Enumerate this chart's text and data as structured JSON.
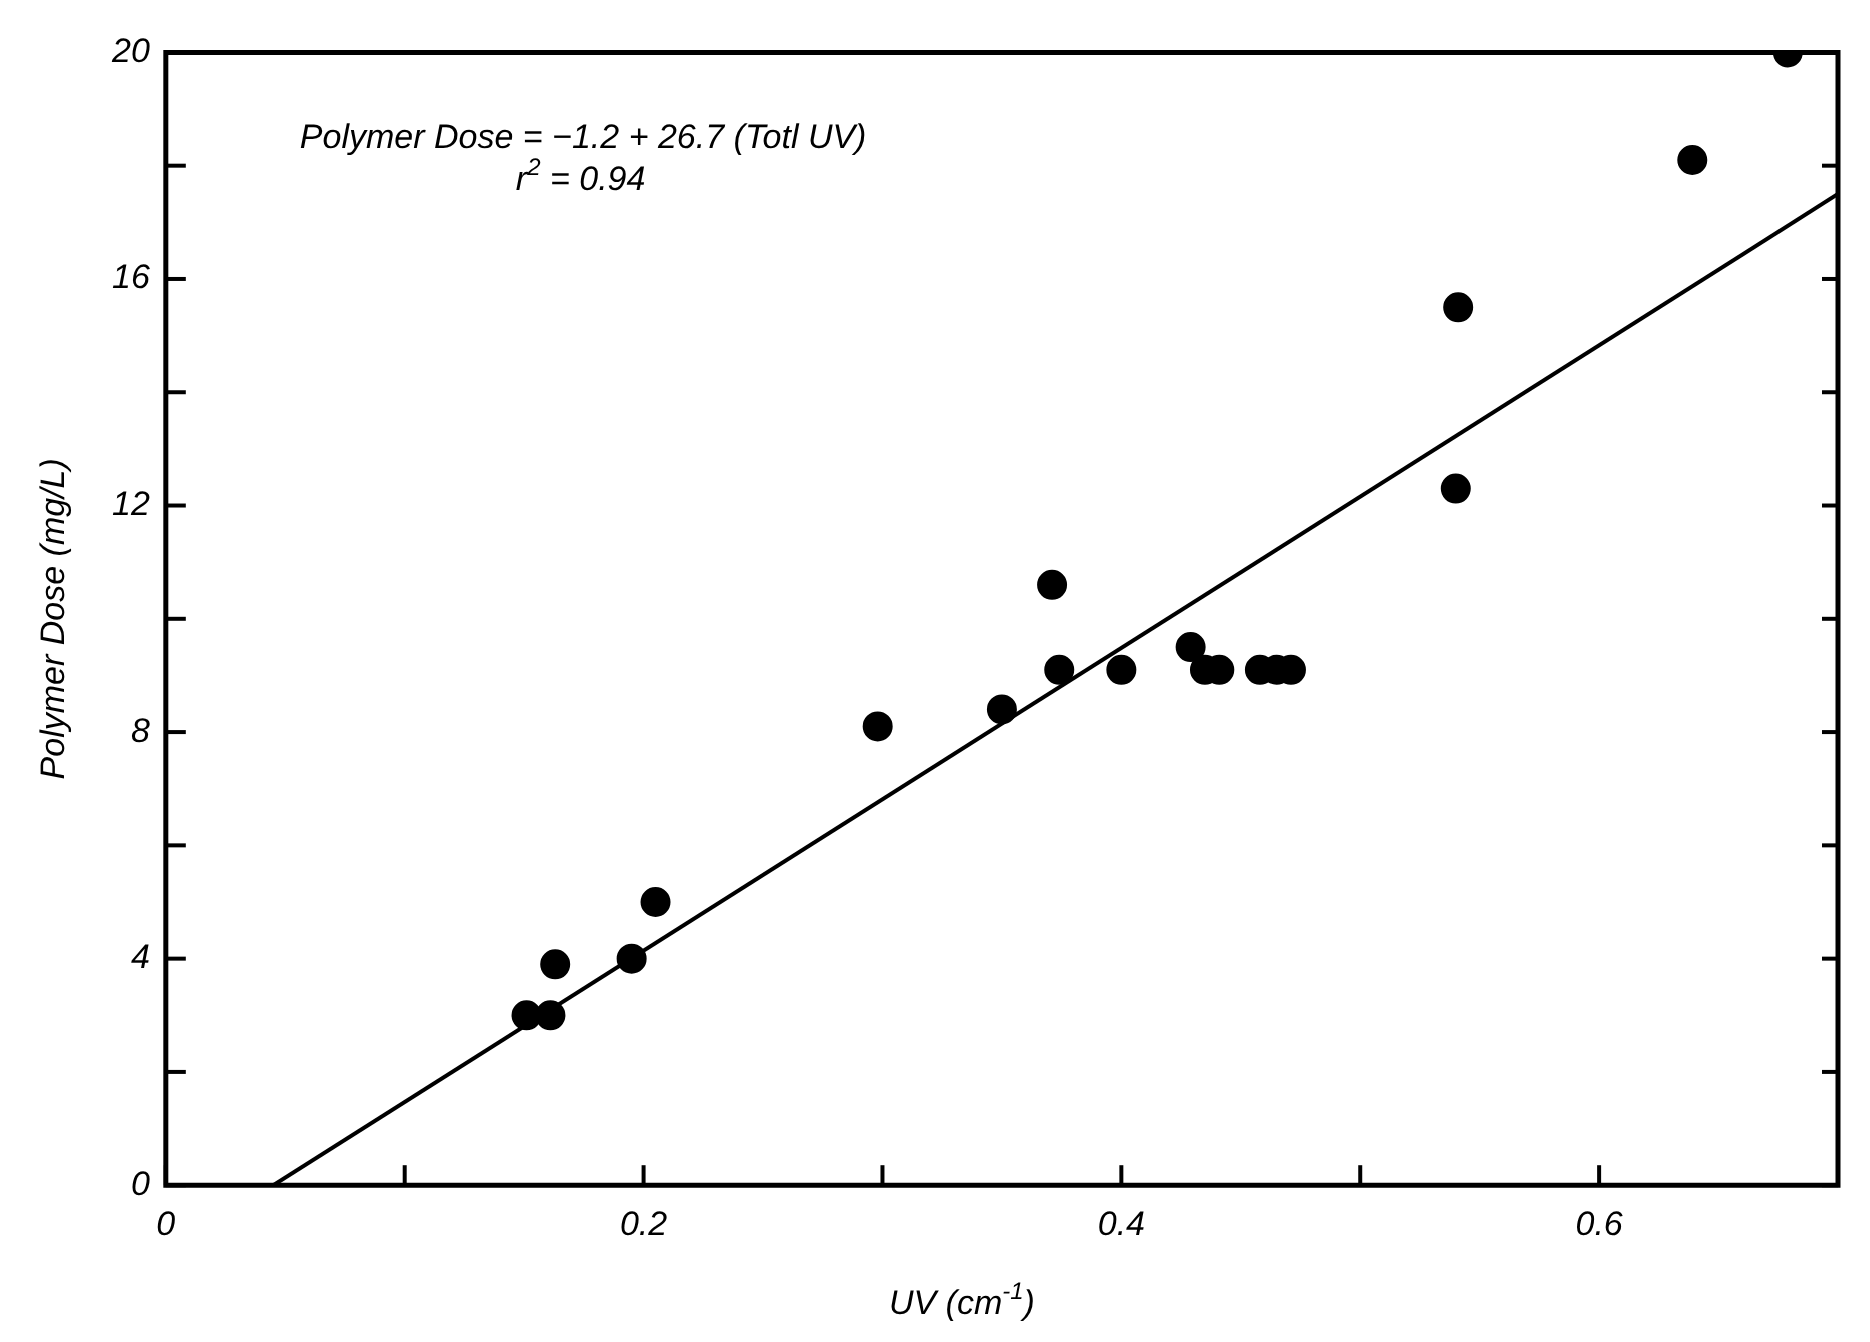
{
  "chart_data": {
    "type": "scatter",
    "xlabel": "UV (cm$^{-1}$)",
    "ylabel": "Polymer Dose (mg/L)",
    "annotations": [
      "Polymer Dose = −1.2 + 26.7 (Totl UV)",
      "r$^{2}$ = 0.94"
    ],
    "xlim": [
      0,
      0.7
    ],
    "ylim": [
      0,
      20
    ],
    "xticks": [
      0,
      {
        "value": 0.1,
        "label": null
      },
      0.2,
      {
        "value": 0.3,
        "label": null
      },
      0.4,
      {
        "value": 0.5,
        "label": null
      },
      0.6
    ],
    "yticks": [
      0,
      {
        "value": 2,
        "label": null
      },
      4,
      {
        "value": 6,
        "label": null
      },
      8,
      {
        "value": 10,
        "label": null
      },
      12,
      {
        "value": 14,
        "label": null
      },
      16,
      {
        "value": 18,
        "label": null
      },
      20
    ],
    "series": [
      {
        "marker": "circle",
        "color": "#000000",
        "x": [
          0.151,
          0.161,
          0.163,
          0.195,
          0.205,
          0.298,
          0.35,
          0.371,
          0.374,
          0.4,
          0.429,
          0.435,
          0.441,
          0.458,
          0.465,
          0.471,
          0.54,
          0.541,
          0.639,
          0.679
        ],
        "values": [
          3,
          3,
          3.9,
          4,
          5,
          8.1,
          8.4,
          10.6,
          9.1,
          9.1,
          9.5,
          9.1,
          9.1,
          9.1,
          9.1,
          9.1,
          12.3,
          15.5,
          18.1,
          20
        ]
      },
      {
        "type": "line",
        "marker": "none",
        "color": "#000000",
        "x": [
          0.045,
          0.7
        ],
        "values": [
          0,
          17.5
        ]
      }
    ]
  }
}
